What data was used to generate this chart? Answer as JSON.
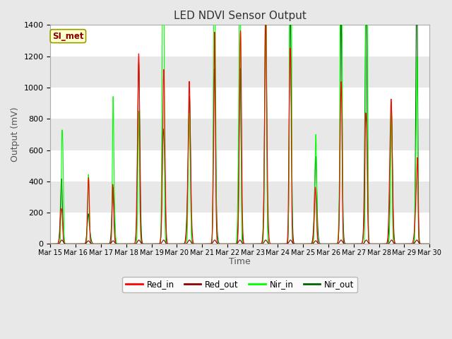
{
  "title": "LED NDVI Sensor Output",
  "xlabel": "Time",
  "ylabel": "Output (mV)",
  "ylim": [
    0,
    1400
  ],
  "background_color": "#e8e8e8",
  "plot_bg_color": "#ffffff",
  "grid_color": "#d0d0d0",
  "tick_labels": [
    "Mar 15",
    "Mar 16",
    "Mar 17",
    "Mar 18",
    "Mar 19",
    "Mar 20",
    "Mar 21",
    "Mar 22",
    "Mar 23",
    "Mar 24",
    "Mar 25",
    "Mar 26",
    "Mar 27",
    "Mar 28",
    "Mar 29",
    "Mar 30"
  ],
  "legend_label": "SI_met",
  "legend_bg": "#ffffcc",
  "legend_edge": "#999900",
  "series": {
    "Red_in": {
      "color": "#ff0000",
      "lw": 0.8
    },
    "Red_out": {
      "color": "#8b0000",
      "lw": 0.8
    },
    "Nir_in": {
      "color": "#00ff00",
      "lw": 0.8
    },
    "Nir_out": {
      "color": "#006400",
      "lw": 0.8
    }
  },
  "band_colors": [
    "#ffffff",
    "#e8e8e8"
  ],
  "yticks": [
    0,
    200,
    400,
    600,
    800,
    1000,
    1200,
    1400
  ],
  "figsize": [
    6.4,
    4.8
  ],
  "dpi": 100
}
